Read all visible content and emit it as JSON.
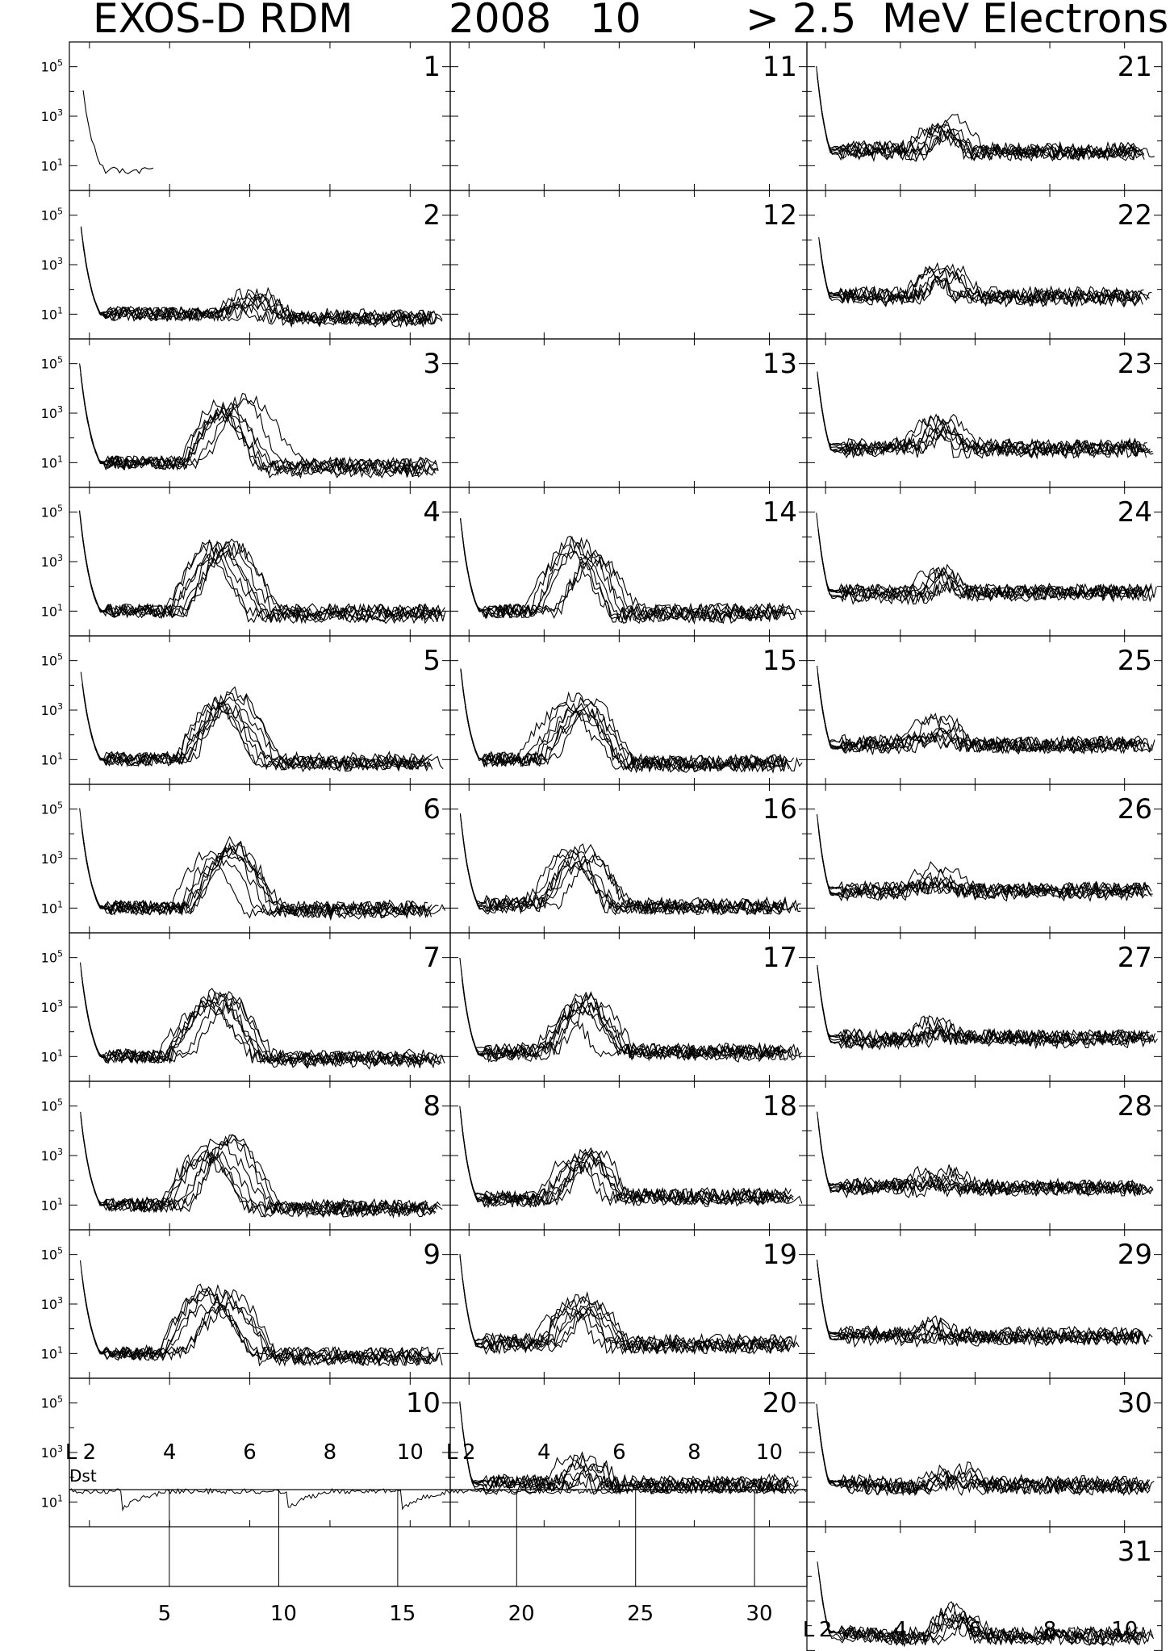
{
  "header": {
    "left": "EXOS-D RDM",
    "center": "2008   10",
    "right": "> 2.5  MeV Electrons"
  },
  "chart_data": {
    "type": "line",
    "title": "EXOS-D RDM   2008   10   > 2.5  MeV Electrons",
    "panel_ylabels": [
      "10^5",
      "10^3",
      "10^1"
    ],
    "y_scale": "log",
    "y_tick_values": [
      100000,
      1000,
      10
    ],
    "x_axis": {
      "label": "L",
      "ticks": [
        2,
        4,
        6,
        8,
        10
      ],
      "tick_labels": [
        "2",
        "4",
        "6",
        "8",
        "10"
      ],
      "range": [
        1.5,
        11
      ]
    },
    "days": [
      {
        "day": "1",
        "has_data": true,
        "peak_L": 0,
        "peak_exp": 0,
        "tail": 0.9,
        "partial": true
      },
      {
        "day": "2",
        "has_data": true,
        "peak_L": 6.0,
        "peak_exp": 1.6,
        "tail": 0.9
      },
      {
        "day": "3",
        "has_data": true,
        "peak_L": 5.6,
        "peak_exp": 3.2,
        "tail": 0.8
      },
      {
        "day": "4",
        "has_data": true,
        "peak_L": 5.2,
        "peak_exp": 3.4,
        "tail": 0.9
      },
      {
        "day": "5",
        "has_data": true,
        "peak_L": 5.2,
        "peak_exp": 3.3,
        "tail": 0.9
      },
      {
        "day": "6",
        "has_data": true,
        "peak_L": 5.2,
        "peak_exp": 3.3,
        "tail": 0.9
      },
      {
        "day": "7",
        "has_data": true,
        "peak_L": 5.1,
        "peak_exp": 3.3,
        "tail": 0.9
      },
      {
        "day": "8",
        "has_data": true,
        "peak_L": 5.2,
        "peak_exp": 3.3,
        "tail": 0.9
      },
      {
        "day": "9",
        "has_data": true,
        "peak_L": 5.2,
        "peak_exp": 3.2,
        "tail": 0.9
      },
      {
        "day": "10",
        "has_data": false
      },
      {
        "day": "11",
        "has_data": false
      },
      {
        "day": "12",
        "has_data": false
      },
      {
        "day": "13",
        "has_data": false
      },
      {
        "day": "14",
        "has_data": true,
        "peak_L": 5.0,
        "peak_exp": 3.4,
        "tail": 0.9
      },
      {
        "day": "15",
        "has_data": true,
        "peak_L": 4.9,
        "peak_exp": 3.2,
        "tail": 0.9
      },
      {
        "day": "16",
        "has_data": true,
        "peak_L": 4.9,
        "peak_exp": 3.1,
        "tail": 1.1
      },
      {
        "day": "17",
        "has_data": true,
        "peak_L": 5.0,
        "peak_exp": 3.1,
        "tail": 1.2
      },
      {
        "day": "18",
        "has_data": true,
        "peak_L": 5.0,
        "peak_exp": 3.0,
        "tail": 1.3
      },
      {
        "day": "19",
        "has_data": true,
        "peak_L": 5.0,
        "peak_exp": 3.0,
        "tail": 1.4
      },
      {
        "day": "20",
        "has_data": true,
        "peak_L": 5.0,
        "peak_exp": 2.4,
        "tail": 1.7
      },
      {
        "day": "21",
        "has_data": true,
        "peak_L": 5.2,
        "peak_exp": 2.5,
        "tail": 1.6
      },
      {
        "day": "22",
        "has_data": true,
        "peak_L": 5.0,
        "peak_exp": 2.6,
        "tail": 1.7
      },
      {
        "day": "23",
        "has_data": true,
        "peak_L": 5.0,
        "peak_exp": 2.5,
        "tail": 1.6
      },
      {
        "day": "24",
        "has_data": true,
        "peak_L": 5.0,
        "peak_exp": 2.3,
        "tail": 1.7
      },
      {
        "day": "25",
        "has_data": true,
        "peak_L": 5.0,
        "peak_exp": 2.3,
        "tail": 1.6
      },
      {
        "day": "26",
        "has_data": true,
        "peak_L": 5.0,
        "peak_exp": 2.2,
        "tail": 1.7
      },
      {
        "day": "27",
        "has_data": true,
        "peak_L": 5.0,
        "peak_exp": 2.1,
        "tail": 1.7
      },
      {
        "day": "28",
        "has_data": true,
        "peak_L": 5.0,
        "peak_exp": 2.1,
        "tail": 1.7
      },
      {
        "day": "29",
        "has_data": true,
        "peak_L": 5.0,
        "peak_exp": 2.0,
        "tail": 1.7
      },
      {
        "day": "30",
        "has_data": true,
        "peak_L": 5.5,
        "peak_exp": 2.2,
        "tail": 1.7
      },
      {
        "day": "31",
        "has_data": true,
        "peak_L": 5.5,
        "peak_exp": 2.4,
        "tail": 1.6
      }
    ],
    "dst_panel": {
      "label": "Dst",
      "x_tick_labels": [
        "5",
        "10",
        "15",
        "20",
        "25",
        "30"
      ],
      "x_ticks": [
        5,
        10,
        15,
        20,
        25,
        30
      ],
      "x_range": [
        1,
        32
      ],
      "day_markers": [
        5.2,
        9.8,
        14.8,
        19.8,
        24.8,
        29.8
      ],
      "dips_day": [
        3.2,
        10.2,
        15.0
      ]
    }
  }
}
